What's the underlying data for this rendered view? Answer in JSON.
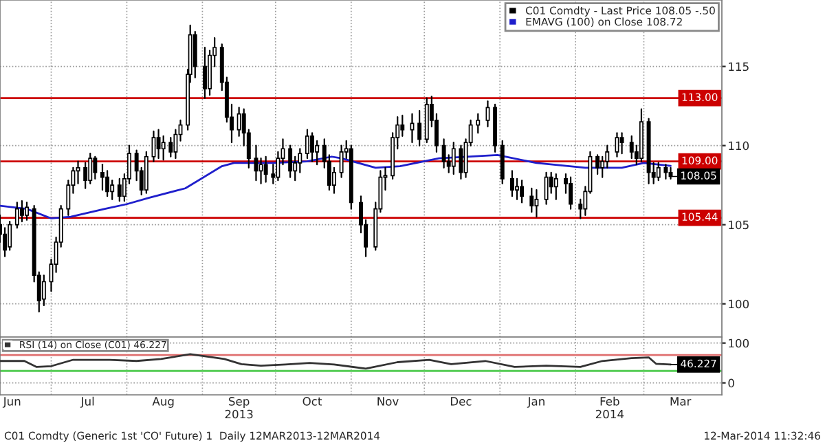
{
  "chart_data": [
    {
      "type": "candlestick",
      "xlim": [
        "2013-06-10",
        "2014-04-02"
      ],
      "ylim": [
        97.9,
        119.2
      ],
      "yticks": [
        100,
        105,
        110,
        115
      ],
      "tick_labels": "y",
      "grid": true,
      "legend": "top right",
      "xticks": [
        {
          "value": "2013-07-01",
          "label": null
        },
        {
          "value": "2013-08-01",
          "label": null
        },
        {
          "value": "2013-09-01",
          "label": null
        },
        {
          "value": "2013-10-01",
          "label": null
        },
        {
          "value": "2013-11-01",
          "label": null
        },
        {
          "value": "2013-12-01",
          "label": null
        },
        {
          "value": "2014-01-01",
          "label": null
        },
        {
          "value": "2014-02-01",
          "label": null
        },
        {
          "value": "2014-03-01",
          "label": null
        }
      ],
      "series": [
        {
          "type": "candlestick",
          "name": "C01 Comdty - Last Price 108.05 -.50",
          "color": "#000000",
          "x": [
            "2013-06-10",
            "2013-06-12",
            "2013-06-14",
            "2013-06-17",
            "2013-06-19",
            "2013-06-21",
            "2013-06-24",
            "2013-06-26",
            "2013-06-28",
            "2013-07-01",
            "2013-07-03",
            "2013-07-05",
            "2013-07-08",
            "2013-07-10",
            "2013-07-12",
            "2013-07-15",
            "2013-07-17",
            "2013-07-19",
            "2013-07-22",
            "2013-07-24",
            "2013-07-26",
            "2013-07-29",
            "2013-07-31",
            "2013-08-02",
            "2013-08-05",
            "2013-08-07",
            "2013-08-09",
            "2013-08-12",
            "2013-08-14",
            "2013-08-16",
            "2013-08-19",
            "2013-08-21",
            "2013-08-23",
            "2013-08-26",
            "2013-08-27",
            "2013-08-29",
            "2013-09-02",
            "2013-09-04",
            "2013-09-06",
            "2013-09-09",
            "2013-09-11",
            "2013-09-13",
            "2013-09-16",
            "2013-09-18",
            "2013-09-20",
            "2013-09-23",
            "2013-09-25",
            "2013-09-27",
            "2013-09-30",
            "2013-10-02",
            "2013-10-04",
            "2013-10-07",
            "2013-10-09",
            "2013-10-11",
            "2013-10-14",
            "2013-10-16",
            "2013-10-18",
            "2013-10-21",
            "2013-10-23",
            "2013-10-25",
            "2013-10-28",
            "2013-10-30",
            "2013-11-01",
            "2013-11-05",
            "2013-11-07",
            "2013-11-11",
            "2013-11-13",
            "2013-11-15",
            "2013-11-18",
            "2013-11-20",
            "2013-11-22",
            "2013-11-26",
            "2013-11-29",
            "2013-12-02",
            "2013-12-04",
            "2013-12-06",
            "2013-12-09",
            "2013-12-11",
            "2013-12-13",
            "2013-12-16",
            "2013-12-18",
            "2013-12-20",
            "2013-12-23",
            "2013-12-27",
            "2013-12-30",
            "2014-01-02",
            "2014-01-06",
            "2014-01-08",
            "2014-01-10",
            "2014-01-14",
            "2014-01-16",
            "2014-01-20",
            "2014-01-22",
            "2014-01-24",
            "2014-01-28",
            "2014-01-30",
            "2014-02-03",
            "2014-02-05",
            "2014-02-07",
            "2014-02-10",
            "2014-02-12",
            "2014-02-14",
            "2014-02-18",
            "2014-02-20",
            "2014-02-24",
            "2014-02-26",
            "2014-02-28",
            "2014-03-03",
            "2014-03-05",
            "2014-03-07",
            "2014-03-10",
            "2014-03-12"
          ],
          "ohlc": [
            [
              105.0,
              105.6,
              103.9,
              104.4
            ],
            [
              104.4,
              104.8,
              103.0,
              103.4
            ],
            [
              103.6,
              105.2,
              103.4,
              105.0
            ],
            [
              105.0,
              106.4,
              104.8,
              106.0
            ],
            [
              106.0,
              106.5,
              105.2,
              105.6
            ],
            [
              105.6,
              106.4,
              105.3,
              106.1
            ],
            [
              106.0,
              106.2,
              101.4,
              101.8
            ],
            [
              101.8,
              102.0,
              99.5,
              100.2
            ],
            [
              100.3,
              101.8,
              99.9,
              101.4
            ],
            [
              101.4,
              102.8,
              100.8,
              102.5
            ],
            [
              102.5,
              104.2,
              102.0,
              103.9
            ],
            [
              103.9,
              106.2,
              103.6,
              106.0
            ],
            [
              106.0,
              107.8,
              105.6,
              107.5
            ],
            [
              107.5,
              108.6,
              107.0,
              108.4
            ],
            [
              108.4,
              109.0,
              107.6,
              108.6
            ],
            [
              108.6,
              108.9,
              107.3,
              107.8
            ],
            [
              107.8,
              109.5,
              107.6,
              109.2
            ],
            [
              109.2,
              109.3,
              107.9,
              108.3
            ],
            [
              108.3,
              108.8,
              107.2,
              108.0
            ],
            [
              108.0,
              108.4,
              106.8,
              107.1
            ],
            [
              107.1,
              107.8,
              106.6,
              107.5
            ],
            [
              107.5,
              107.9,
              106.5,
              106.8
            ],
            [
              106.8,
              108.2,
              106.5,
              107.9
            ],
            [
              107.9,
              110.0,
              107.6,
              109.5
            ],
            [
              109.5,
              109.7,
              107.8,
              108.4
            ],
            [
              108.4,
              108.6,
              106.9,
              107.2
            ],
            [
              107.2,
              109.6,
              107.0,
              109.3
            ],
            [
              109.3,
              110.9,
              109.0,
              110.5
            ],
            [
              110.5,
              111.0,
              109.2,
              109.8
            ],
            [
              109.8,
              110.6,
              109.1,
              110.2
            ],
            [
              110.2,
              110.5,
              109.3,
              109.6
            ],
            [
              109.6,
              111.0,
              109.2,
              110.7
            ],
            [
              110.7,
              111.6,
              110.3,
              111.3
            ],
            [
              111.3,
              114.8,
              111.0,
              114.5
            ],
            [
              114.5,
              117.6,
              114.0,
              117.0
            ],
            [
              117.0,
              117.2,
              114.3,
              115.0
            ],
            [
              115.0,
              116.2,
              113.0,
              113.6
            ],
            [
              113.6,
              116.0,
              113.2,
              115.7
            ],
            [
              115.7,
              116.8,
              115.0,
              116.2
            ],
            [
              116.2,
              116.4,
              113.5,
              114.0
            ],
            [
              114.0,
              114.3,
              111.5,
              111.8
            ],
            [
              111.8,
              112.6,
              110.2,
              111.0
            ],
            [
              111.0,
              112.4,
              110.6,
              112.0
            ],
            [
              112.0,
              112.3,
              110.0,
              110.8
            ],
            [
              110.8,
              111.0,
              108.6,
              109.2
            ],
            [
              109.2,
              110.0,
              107.8,
              108.4
            ],
            [
              108.4,
              109.2,
              107.6,
              108.8
            ],
            [
              108.8,
              109.3,
              107.7,
              108.2
            ],
            [
              108.2,
              108.8,
              107.6,
              108.0
            ],
            [
              108.0,
              109.6,
              107.8,
              109.2
            ],
            [
              109.2,
              110.4,
              108.8,
              109.8
            ],
            [
              109.8,
              110.0,
              108.0,
              108.4
            ],
            [
              108.4,
              109.3,
              107.8,
              108.9
            ],
            [
              108.9,
              109.8,
              108.3,
              109.5
            ],
            [
              109.5,
              111.0,
              109.2,
              110.6
            ],
            [
              110.6,
              110.8,
              109.0,
              109.6
            ],
            [
              109.6,
              110.3,
              108.8,
              110.0
            ],
            [
              110.0,
              110.4,
              108.6,
              109.0
            ],
            [
              109.0,
              109.4,
              107.2,
              107.5
            ],
            [
              107.5,
              108.6,
              107.0,
              108.3
            ],
            [
              108.3,
              110.0,
              108.0,
              109.6
            ],
            [
              109.6,
              110.3,
              109.2,
              109.8
            ],
            [
              109.8,
              110.0,
              106.0,
              106.4
            ],
            [
              106.4,
              106.8,
              104.5,
              105.0
            ],
            [
              105.0,
              105.3,
              103.0,
              103.6
            ],
            [
              103.6,
              106.4,
              103.4,
              106.0
            ],
            [
              106.0,
              108.4,
              105.8,
              108.0
            ],
            [
              108.0,
              108.6,
              107.2,
              108.1
            ],
            [
              108.1,
              110.8,
              107.9,
              110.5
            ],
            [
              110.5,
              111.8,
              109.8,
              111.3
            ],
            [
              111.3,
              111.9,
              110.6,
              111.0
            ],
            [
              111.0,
              112.0,
              110.2,
              111.4
            ],
            [
              111.4,
              112.2,
              110.0,
              110.4
            ],
            [
              110.4,
              113.0,
              110.2,
              112.6
            ],
            [
              112.6,
              113.1,
              111.2,
              111.6
            ],
            [
              111.6,
              112.0,
              109.6,
              110.0
            ],
            [
              110.0,
              110.4,
              108.6,
              109.0
            ],
            [
              109.0,
              109.4,
              108.3,
              108.7
            ],
            [
              108.7,
              110.2,
              108.2,
              109.8
            ],
            [
              109.8,
              110.0,
              107.9,
              108.3
            ],
            [
              108.3,
              110.4,
              108.0,
              110.2
            ],
            [
              110.2,
              111.6,
              110.0,
              111.3
            ],
            [
              111.3,
              112.0,
              110.8,
              111.6
            ],
            [
              111.6,
              112.8,
              111.2,
              112.4
            ],
            [
              112.4,
              112.6,
              109.6,
              110.0
            ],
            [
              110.0,
              110.3,
              107.6,
              107.9
            ],
            [
              107.9,
              108.4,
              106.8,
              107.2
            ],
            [
              107.2,
              107.9,
              106.6,
              107.4
            ],
            [
              107.4,
              107.8,
              106.4,
              106.8
            ],
            [
              106.8,
              107.3,
              105.8,
              106.2
            ],
            [
              106.2,
              107.2,
              105.5,
              106.6
            ],
            [
              106.6,
              108.3,
              106.3,
              108.0
            ],
            [
              108.0,
              108.3,
              107.0,
              107.4
            ],
            [
              107.4,
              108.2,
              106.6,
              107.9
            ],
            [
              107.9,
              108.2,
              107.0,
              107.6
            ],
            [
              107.6,
              108.0,
              106.0,
              106.3
            ],
            [
              106.3,
              106.6,
              105.4,
              106.0
            ],
            [
              106.0,
              107.4,
              105.6,
              107.1
            ],
            [
              107.1,
              109.6,
              107.0,
              109.3
            ],
            [
              109.3,
              109.4,
              108.2,
              108.6
            ],
            [
              108.6,
              109.3,
              108.0,
              109.0
            ],
            [
              109.0,
              110.0,
              108.6,
              109.6
            ],
            [
              109.6,
              110.8,
              109.3,
              110.5
            ],
            [
              110.5,
              110.8,
              109.5,
              110.2
            ],
            [
              110.2,
              110.6,
              109.2,
              109.6
            ],
            [
              109.6,
              110.0,
              108.8,
              109.2
            ],
            [
              109.2,
              112.3,
              109.0,
              111.5
            ],
            [
              111.5,
              111.7,
              107.6,
              108.3
            ],
            [
              108.3,
              108.9,
              107.6,
              108.0
            ],
            [
              108.0,
              108.9,
              107.8,
              108.6
            ],
            [
              108.6,
              108.8,
              107.9,
              108.3
            ],
            [
              108.3,
              108.6,
              107.9,
              108.05
            ]
          ]
        },
        {
          "type": "line",
          "name": "EMAVG (100) on Close 108.72",
          "color": "#1f1fcc",
          "x": [
            "2013-06-10",
            "2013-06-21",
            "2013-07-01",
            "2013-07-09",
            "2013-07-23",
            "2013-08-01",
            "2013-08-10",
            "2013-08-25",
            "2013-09-09",
            "2013-09-14",
            "2013-09-30",
            "2013-10-14",
            "2013-10-24",
            "2013-10-28",
            "2013-11-11",
            "2013-11-21",
            "2013-12-07",
            "2013-12-31",
            "2014-01-16",
            "2014-02-05",
            "2014-02-20",
            "2014-03-01",
            "2014-03-12"
          ],
          "values": [
            106.2,
            106.0,
            105.4,
            105.5,
            106.0,
            106.3,
            106.7,
            107.3,
            108.7,
            108.9,
            108.9,
            109.0,
            109.3,
            109.2,
            108.6,
            108.7,
            109.2,
            109.4,
            108.9,
            108.6,
            108.6,
            108.9,
            108.72
          ]
        }
      ],
      "ref_lines": [
        {
          "axis": "y",
          "value": 113,
          "label": "113.00",
          "color": "#cc0000"
        },
        {
          "axis": "y",
          "value": 109,
          "label": "109.00",
          "color": "#cc0000"
        },
        {
          "axis": "y",
          "value": 105.44,
          "label": "105.44",
          "color": "#cc0000"
        }
      ],
      "annotations": [
        {
          "text": "108.05",
          "x": "2014-03-12",
          "y": 108.05
        }
      ]
    },
    {
      "type": "line",
      "xlim": [
        "2013-06-10",
        "2014-04-02"
      ],
      "ylim": [
        -30,
        115
      ],
      "yticks": [
        0,
        100
      ],
      "grid": true,
      "legend": "top left",
      "xticks": [
        {
          "value": "2013-06-15",
          "label": "Jun"
        },
        {
          "value": "2013-07-01",
          "label": null
        },
        {
          "value": "2013-07-16",
          "label": "Jul"
        },
        {
          "value": "2013-08-01",
          "label": null
        },
        {
          "value": "2013-08-16",
          "label": "Aug"
        },
        {
          "value": "2013-09-01",
          "label": null
        },
        {
          "value": "2013-09-16",
          "label": "Sep\n2013"
        },
        {
          "value": "2013-10-01",
          "label": null
        },
        {
          "value": "2013-10-16",
          "label": "Oct"
        },
        {
          "value": "2013-11-01",
          "label": null
        },
        {
          "value": "2013-11-16",
          "label": "Nov"
        },
        {
          "value": "2013-12-01",
          "label": null
        },
        {
          "value": "2013-12-16",
          "label": "Dec"
        },
        {
          "value": "2014-01-01",
          "label": null
        },
        {
          "value": "2014-01-16",
          "label": "Jan"
        },
        {
          "value": "2014-02-01",
          "label": null
        },
        {
          "value": "2014-02-15",
          "label": "Feb\n2014"
        },
        {
          "value": "2014-03-01",
          "label": null
        },
        {
          "value": "2014-03-16",
          "label": "Mar"
        }
      ],
      "series": [
        {
          "name": "RSI (14) on Close (C01) 46.227",
          "color": "#333333",
          "x": [
            "2013-06-10",
            "2013-06-20",
            "2013-06-25",
            "2013-07-01",
            "2013-07-10",
            "2013-07-25",
            "2013-08-05",
            "2013-08-15",
            "2013-08-27",
            "2013-09-03",
            "2013-09-10",
            "2013-09-17",
            "2013-09-25",
            "2013-10-05",
            "2013-10-15",
            "2013-10-25",
            "2013-11-07",
            "2013-11-20",
            "2013-12-03",
            "2013-12-12",
            "2013-12-26",
            "2014-01-07",
            "2014-01-20",
            "2014-02-03",
            "2014-02-12",
            "2014-02-24",
            "2014-03-03",
            "2014-03-06",
            "2014-03-12"
          ],
          "values": [
            55,
            55,
            40,
            42,
            58,
            58,
            55,
            60,
            72,
            66,
            60,
            47,
            43,
            46,
            50,
            46,
            36,
            52,
            58,
            47,
            55,
            40,
            43,
            40,
            55,
            62,
            64,
            48,
            46.227
          ]
        }
      ],
      "ref_lines": [
        {
          "axis": "y",
          "value": 70,
          "color": "#e07070"
        },
        {
          "axis": "y",
          "value": 30,
          "color": "#55cc55"
        }
      ],
      "annotations": [
        {
          "text": "46.227",
          "x": "2014-03-12",
          "y": 46.227
        },
        "C01 Comdty (Generic 1st 'CO' Future) 1  Daily 12MAR2013-12MAR2014",
        "12-Mar-2014 11:32:46"
      ]
    }
  ]
}
